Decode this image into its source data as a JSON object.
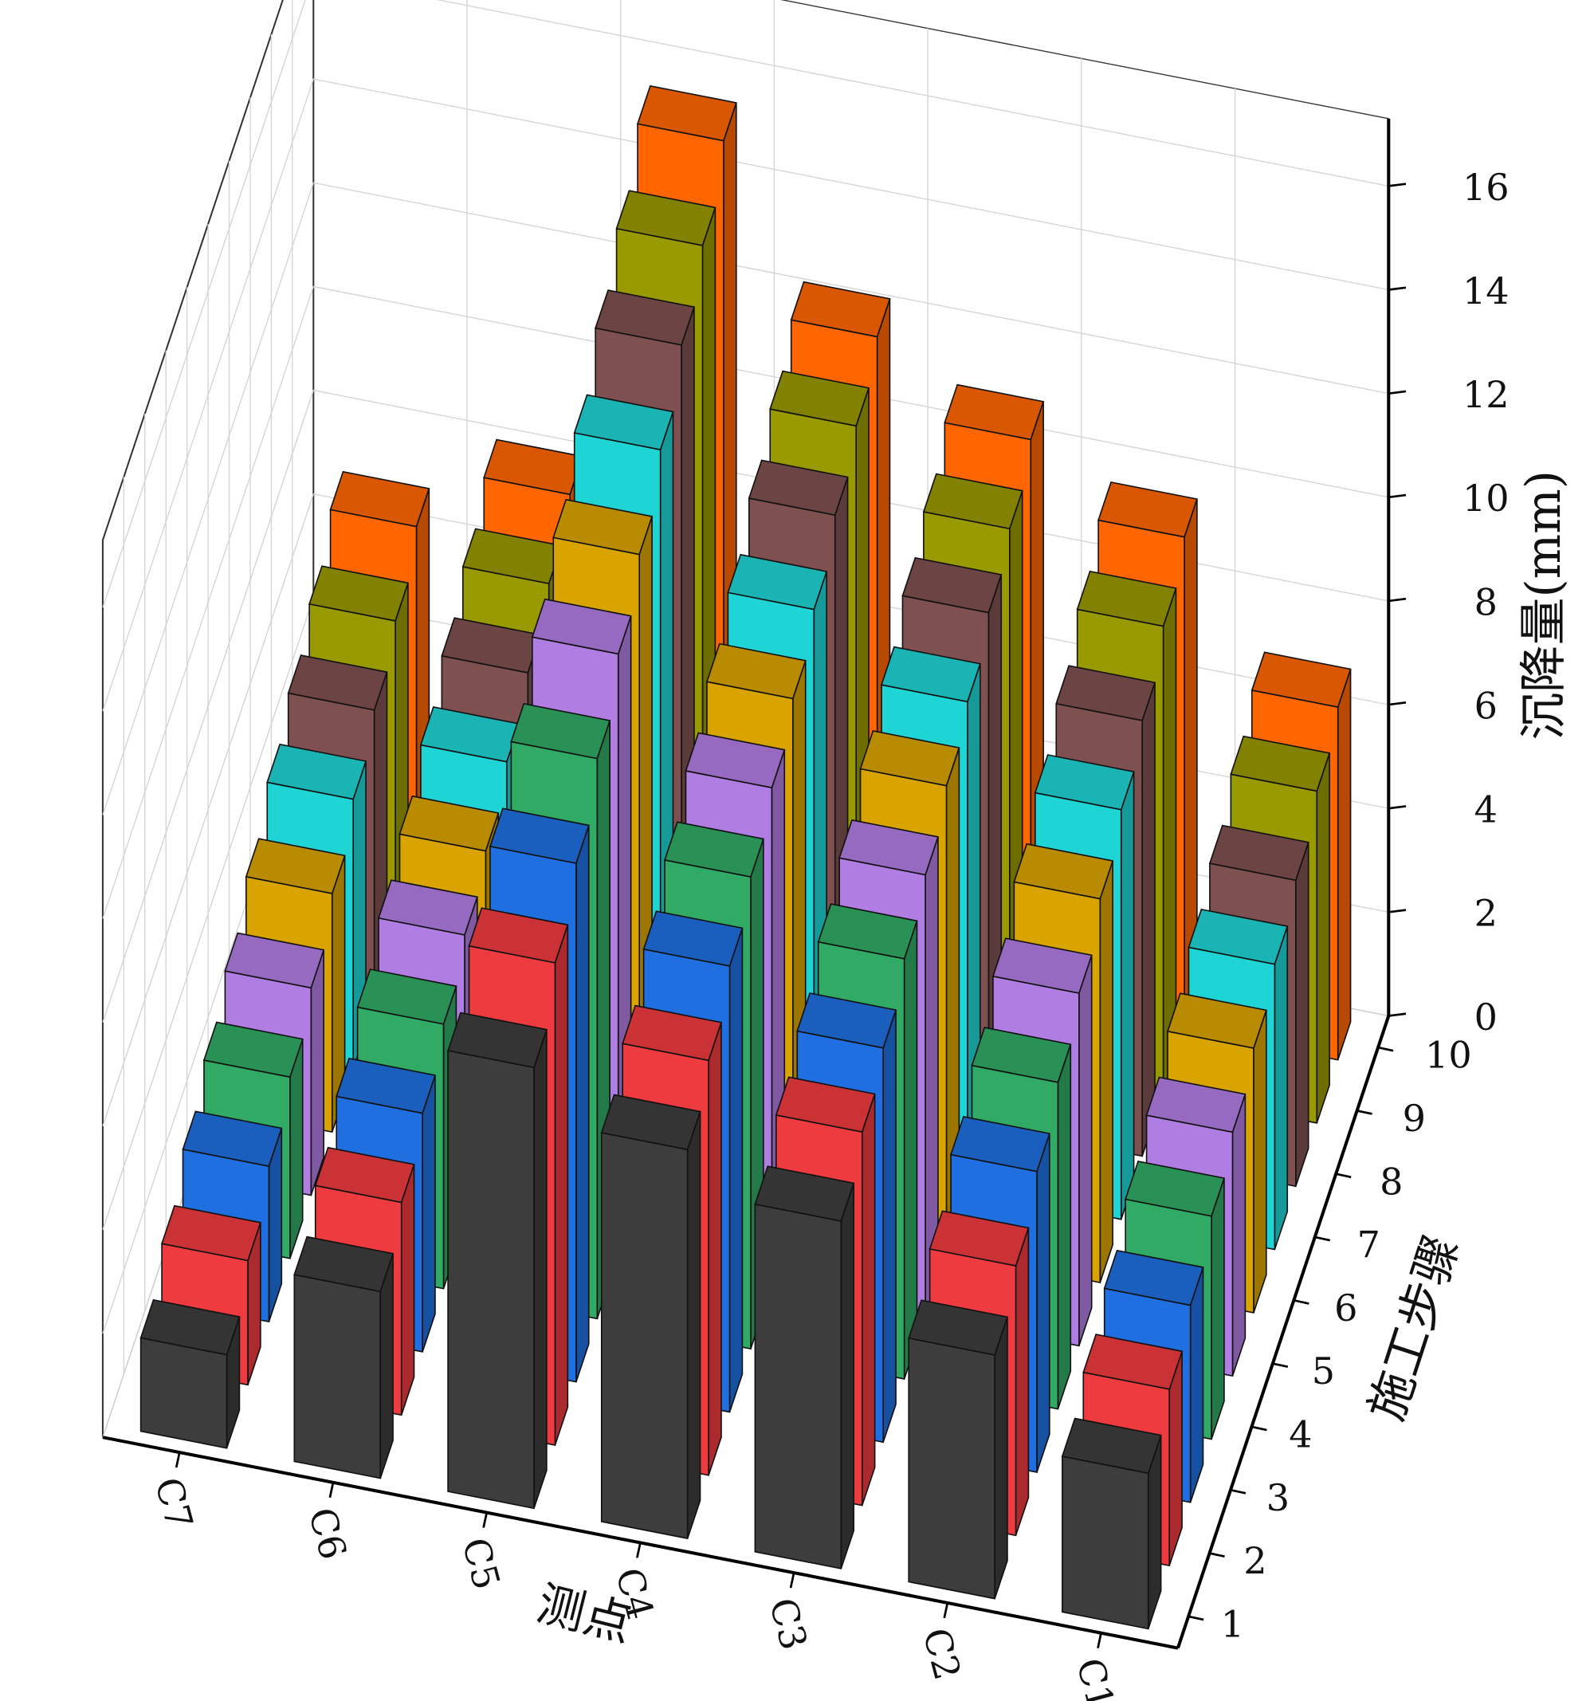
{
  "chart_data": {
    "type": "bar3d",
    "x_label": "测点",
    "y_label": "施工步骤",
    "z_label": "沉降量(mm)",
    "categories": [
      "C7",
      "C6",
      "C5",
      "C4",
      "C3",
      "C2",
      "C1"
    ],
    "series": [
      {
        "name": "1",
        "color": "#3d3d3d",
        "values": [
          1.8,
          3.6,
          8.5,
          7.5,
          6.7,
          4.7,
          3.0
        ]
      },
      {
        "name": "2",
        "color": "#ee3b3f",
        "values": [
          2.4,
          4.1,
          9.3,
          8.0,
          7.2,
          5.2,
          3.4
        ]
      },
      {
        "name": "3",
        "color": "#1f6fe0",
        "values": [
          3.0,
          4.6,
          10.0,
          8.6,
          7.6,
          5.8,
          3.8
        ]
      },
      {
        "name": "4",
        "color": "#30aa64",
        "values": [
          3.5,
          5.1,
          10.8,
          9.1,
          8.1,
          6.3,
          4.3
        ]
      },
      {
        "name": "5",
        "color": "#b07de2",
        "values": [
          4.0,
          5.6,
          11.6,
          9.6,
          8.5,
          6.8,
          4.7
        ]
      },
      {
        "name": "6",
        "color": "#d9a400",
        "values": [
          4.6,
          6.0,
          12.3,
          10.1,
          9.0,
          7.4,
          5.1
        ]
      },
      {
        "name": "7",
        "color": "#1fd4d4",
        "values": [
          5.2,
          6.5,
          13.1,
          10.6,
          9.4,
          7.9,
          5.5
        ]
      },
      {
        "name": "8",
        "color": "#7f5050",
        "values": [
          5.7,
          7.0,
          13.9,
          11.2,
          9.9,
          8.4,
          5.9
        ]
      },
      {
        "name": "9",
        "color": "#999900",
        "values": [
          6.2,
          7.5,
          14.6,
          11.7,
          10.3,
          9.0,
          6.4
        ]
      },
      {
        "name": "10",
        "color": "#ff6600",
        "values": [
          6.8,
          8.0,
          15.4,
          12.2,
          10.8,
          9.5,
          6.8
        ]
      }
    ],
    "zlim": [
      0,
      17.3
    ],
    "zticks": [
      0,
      2,
      4,
      6,
      8,
      10,
      12,
      14,
      16
    ],
    "grid": true
  }
}
